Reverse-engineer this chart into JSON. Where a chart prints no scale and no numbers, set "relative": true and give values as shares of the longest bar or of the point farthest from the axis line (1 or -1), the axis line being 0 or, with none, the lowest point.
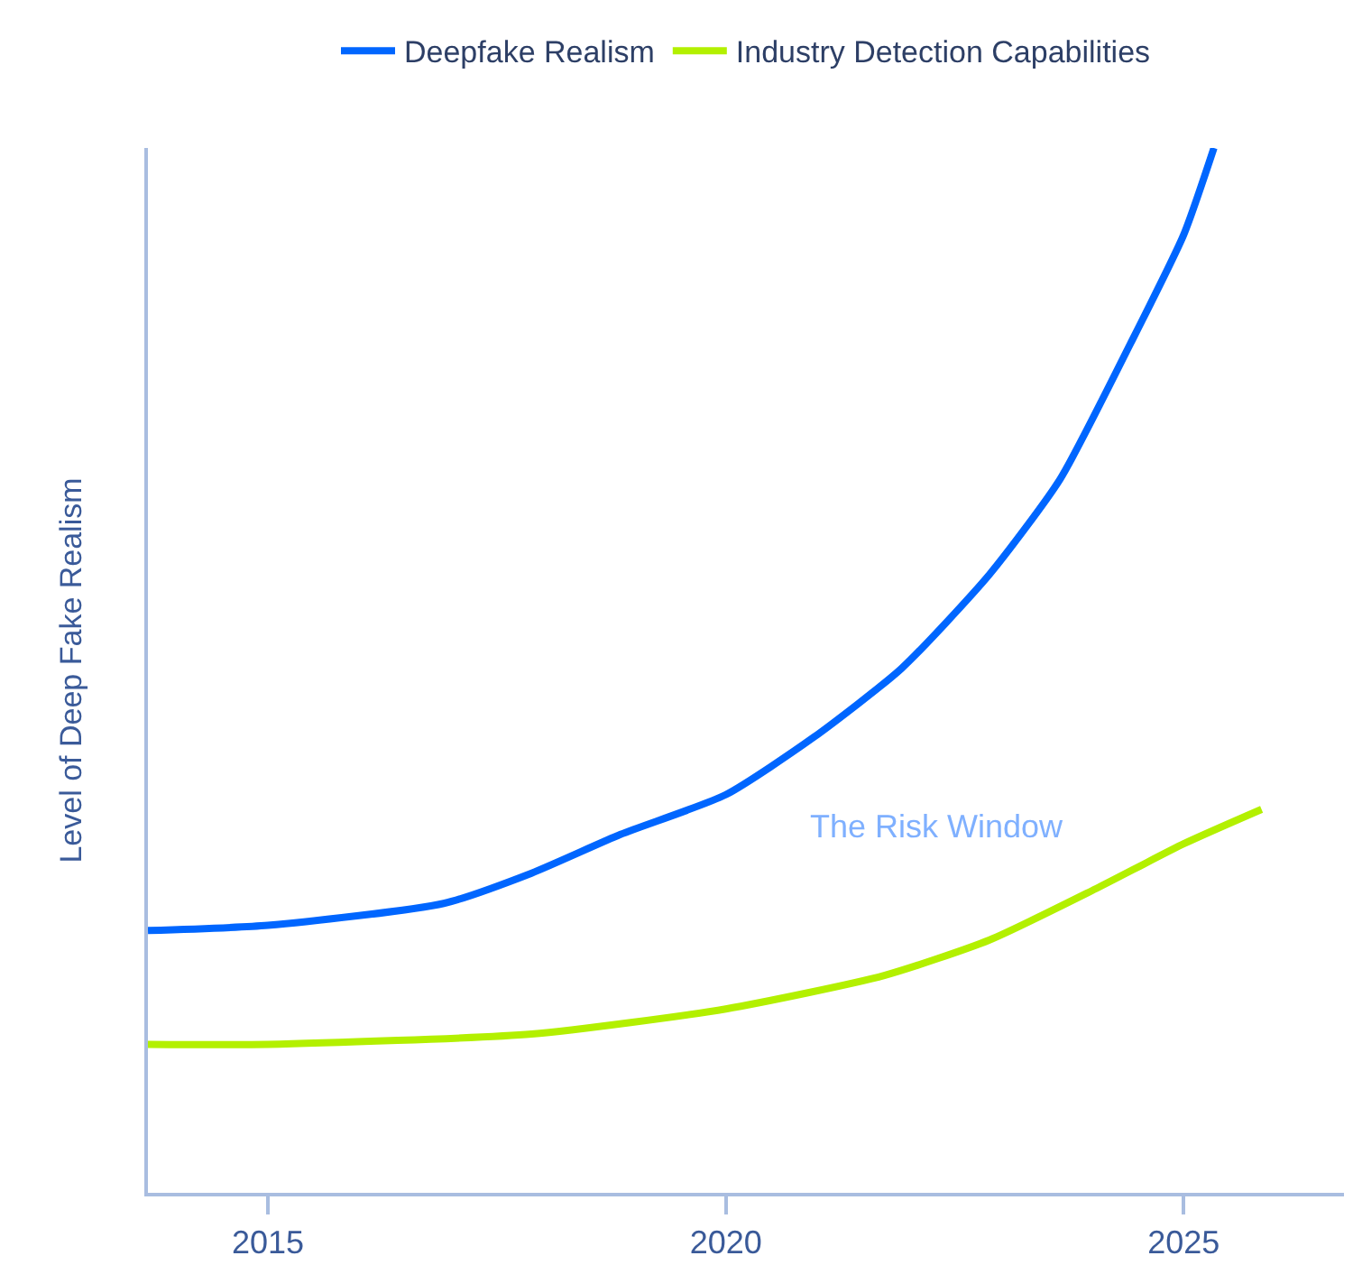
{
  "chart_data": {
    "type": "line",
    "relative": true,
    "ylabel": "Level of Deep Fake Realism",
    "xlim": [
      2013.69,
      2026.75
    ],
    "xticks": [
      2015,
      2020,
      2025
    ],
    "legend": "top",
    "series": [
      {
        "name": "Deepfake Realism",
        "color": "#0066ff",
        "x": [
          2013.69,
          2015,
          2016.92,
          2017.88,
          2018.85,
          2020,
          2020.96,
          2021.92,
          2022.88,
          2023.65,
          2024.42,
          2025,
          2025.33
        ],
        "values": [
          0.251,
          0.256,
          0.277,
          0.306,
          0.343,
          0.381,
          0.436,
          0.502,
          0.592,
          0.683,
          0.813,
          0.917,
          1
        ]
      },
      {
        "name": "Industry Detection Capabilities",
        "color": "#b3f000",
        "x": [
          2013.69,
          2015,
          2017.88,
          2020,
          2021.73,
          2022.88,
          2024.04,
          2025,
          2025.85
        ],
        "values": [
          0.142,
          0.142,
          0.152,
          0.176,
          0.208,
          0.242,
          0.291,
          0.334,
          0.367
        ]
      }
    ],
    "annotations": [
      "The Risk Window"
    ]
  }
}
